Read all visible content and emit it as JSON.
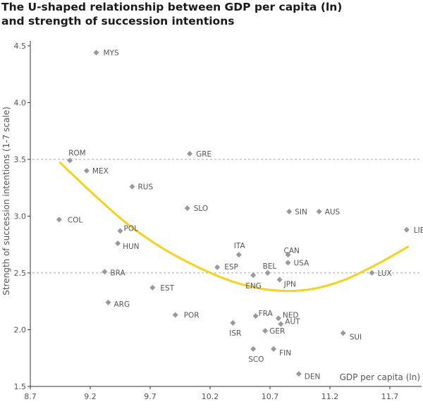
{
  "chart_data": {
    "type": "scatter",
    "title": "The U-shaped relationship between GDP per capita (ln) and strength of succession intentions",
    "xlabel": "GDP per capita (ln)",
    "ylabel": "Strength of succession intentions (1-7 scale)",
    "xlim": [
      8.7,
      11.9
    ],
    "ylim": [
      1.5,
      4.5
    ],
    "xticks": [
      "8.7",
      "9.2",
      "9.7",
      "10.2",
      "10.7",
      "11.2",
      "11.7"
    ],
    "yticks": [
      "1.5",
      "2.0",
      "2.5",
      "3.0",
      "3.5",
      "4.0",
      "4.5"
    ],
    "grid": "dashed horizontal at 2.5 and 3.5",
    "points": [
      {
        "label": "MYS",
        "x": 9.25,
        "y": 4.44
      },
      {
        "label": "ROM",
        "x": 9.03,
        "y": 3.49
      },
      {
        "label": "MEX",
        "x": 9.17,
        "y": 3.4
      },
      {
        "label": "GRE",
        "x": 10.03,
        "y": 3.55
      },
      {
        "label": "RUS",
        "x": 9.55,
        "y": 3.26
      },
      {
        "label": "SLO",
        "x": 10.01,
        "y": 3.07
      },
      {
        "label": "COL",
        "x": 8.94,
        "y": 2.97
      },
      {
        "label": "POL",
        "x": 9.45,
        "y": 2.87
      },
      {
        "label": "HUN",
        "x": 9.43,
        "y": 2.76
      },
      {
        "label": "BRA",
        "x": 9.32,
        "y": 2.51
      },
      {
        "label": "EST",
        "x": 9.72,
        "y": 2.37
      },
      {
        "label": "ARG",
        "x": 9.35,
        "y": 2.24
      },
      {
        "label": "POR",
        "x": 9.91,
        "y": 2.13
      },
      {
        "label": "ITA",
        "x": 10.44,
        "y": 2.66
      },
      {
        "label": "ESP",
        "x": 10.26,
        "y": 2.55
      },
      {
        "label": "ENG",
        "x": 10.56,
        "y": 2.48
      },
      {
        "label": "BEL",
        "x": 10.68,
        "y": 2.5
      },
      {
        "label": "CAN",
        "x": 10.85,
        "y": 2.66
      },
      {
        "label": "USA",
        "x": 10.85,
        "y": 2.59
      },
      {
        "label": "JPN",
        "x": 10.78,
        "y": 2.44
      },
      {
        "label": "SIN",
        "x": 10.86,
        "y": 3.04
      },
      {
        "label": "AUS",
        "x": 11.11,
        "y": 3.04
      },
      {
        "label": "LIE",
        "x": 11.84,
        "y": 2.88
      },
      {
        "label": "LUX",
        "x": 11.55,
        "y": 2.5
      },
      {
        "label": "FRA",
        "x": 10.58,
        "y": 2.12
      },
      {
        "label": "NED",
        "x": 10.77,
        "y": 2.1
      },
      {
        "label": "AUT",
        "x": 10.79,
        "y": 2.05
      },
      {
        "label": "ISR",
        "x": 10.39,
        "y": 2.06
      },
      {
        "label": "GER",
        "x": 10.66,
        "y": 1.99
      },
      {
        "label": "SUI",
        "x": 11.31,
        "y": 1.97
      },
      {
        "label": "SCO",
        "x": 10.56,
        "y": 1.83
      },
      {
        "label": "FIN",
        "x": 10.73,
        "y": 1.83
      },
      {
        "label": "DEN",
        "x": 10.94,
        "y": 1.61
      }
    ],
    "trendline": {
      "type": "quadratic fit",
      "x": [
        8.95,
        9.2,
        9.5,
        9.8,
        10.1,
        10.4,
        10.7,
        11.0,
        11.3,
        11.6,
        11.85
      ],
      "y": [
        3.47,
        3.22,
        2.94,
        2.72,
        2.55,
        2.42,
        2.35,
        2.35,
        2.43,
        2.58,
        2.73
      ]
    },
    "colors": {
      "marker": "#999999",
      "trend": "#f5d416",
      "grid": "#aaaaaa",
      "axis": "#333333",
      "text": "#555555"
    }
  }
}
